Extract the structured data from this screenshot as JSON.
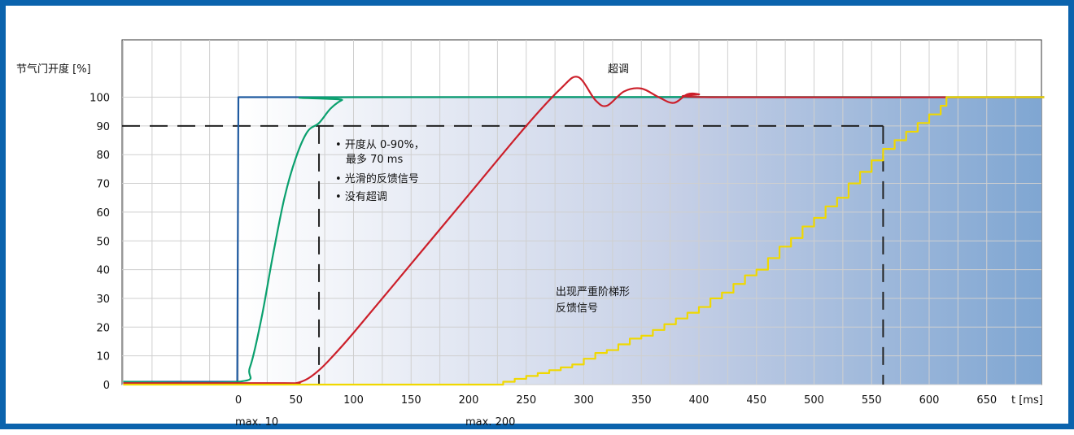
{
  "chart_data": {
    "type": "line",
    "ylabel": "节气门开度 [%]",
    "xlabel": "t [ms]",
    "xlim": [
      -100,
      700
    ],
    "ylim": [
      0,
      110
    ],
    "grid": true,
    "x_ticks": [
      0,
      50,
      100,
      150,
      200,
      250,
      300,
      350,
      400,
      450,
      500,
      550,
      600,
      650
    ],
    "y_ticks": [
      0,
      10,
      20,
      30,
      40,
      50,
      60,
      70,
      80,
      90,
      100
    ],
    "colors": {
      "frame": "#0b63ad",
      "blue_series": "#1f5aa0",
      "green_series": "#0aa06e",
      "red_series": "#cc1f2a",
      "yellow_series": "#f0d800",
      "reference_lines": "#222222"
    },
    "reference_lines": {
      "horizontal_y": 90,
      "vertical_x": [
        70,
        560
      ]
    },
    "x_annotations": [
      {
        "x": 0,
        "text": "max. 10"
      },
      {
        "x": 200,
        "text": "max. 200"
      }
    ],
    "annotations": {
      "bullets": [
        "开度从 0-90%，",
        "最多 70 ms",
        "光滑的反馈信号",
        "没有超调"
      ],
      "overshoot": "超调",
      "staircase": [
        "出现严重阶梯形",
        "反馈信号"
      ]
    },
    "series": [
      {
        "color": "#1f5aa0",
        "x": [
          -100,
          -1,
          0,
          700
        ],
        "y": [
          1,
          1,
          100,
          100
        ]
      },
      {
        "color": "#0aa06e",
        "x": [
          -100,
          0,
          10,
          20,
          30,
          40,
          50,
          60,
          70,
          80,
          90,
          100,
          700
        ],
        "y": [
          1,
          1,
          6,
          23,
          45,
          65,
          79,
          88,
          91,
          96,
          99,
          100,
          100
        ]
      },
      {
        "color": "#cc1f2a",
        "x": [
          -100,
          40,
          50,
          60,
          70,
          80,
          100,
          150,
          200,
          250,
          280,
          295,
          310,
          320,
          335,
          350,
          365,
          378,
          390,
          400,
          410,
          700
        ],
        "y": [
          0.5,
          0.5,
          0.5,
          2,
          5,
          9,
          18,
          42,
          66,
          90,
          103,
          107,
          99,
          97,
          102,
          103,
          100,
          98,
          101,
          101,
          100,
          100
        ]
      },
      {
        "color": "#f0d800",
        "stepped": true,
        "x": [
          -100,
          225,
          230,
          240,
          250,
          260,
          270,
          280,
          290,
          300,
          310,
          320,
          330,
          340,
          350,
          360,
          370,
          380,
          390,
          400,
          410,
          420,
          430,
          440,
          450,
          460,
          470,
          480,
          490,
          500,
          510,
          520,
          530,
          540,
          550,
          560,
          570,
          580,
          590,
          600,
          610,
          615,
          700
        ],
        "y": [
          0,
          0,
          1,
          2,
          3,
          4,
          5,
          6,
          7,
          9,
          11,
          12,
          14,
          16,
          17,
          19,
          21,
          23,
          25,
          27,
          30,
          32,
          35,
          38,
          40,
          44,
          48,
          51,
          55,
          58,
          62,
          65,
          70,
          74,
          78,
          82,
          85,
          88,
          91,
          94,
          97,
          100,
          100
        ]
      }
    ]
  }
}
